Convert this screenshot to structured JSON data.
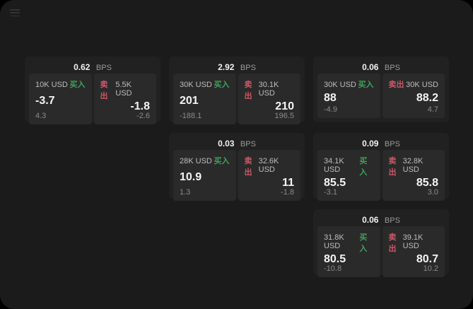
{
  "labels": {
    "bps_unit": "BPS",
    "buy": "买入",
    "sell": "卖出"
  },
  "colors": {
    "background": "#1b1b1b",
    "card": "#212121",
    "panel": "#2a2a2a",
    "buy_accent": "#3fa15c",
    "sell_accent": "#cf5668"
  },
  "cards": [
    {
      "bps": "0.62",
      "buy": {
        "amount": "10K USD",
        "price": "-3.7",
        "delta": "4.3"
      },
      "sell": {
        "amount": "5.5K USD",
        "price": "-1.8",
        "delta": "-2.6"
      }
    },
    {
      "bps": "2.92",
      "buy": {
        "amount": "30K USD",
        "price": "201",
        "delta": "-188.1"
      },
      "sell": {
        "amount": "30.1K USD",
        "price": "210",
        "delta": "196.5"
      }
    },
    {
      "bps": "0.06",
      "buy": {
        "amount": "30K USD",
        "price": "88",
        "delta": "-4.9"
      },
      "sell": {
        "amount": "30K USD",
        "price": "88.2",
        "delta": "4.7"
      }
    },
    {
      "bps": "0.03",
      "buy": {
        "amount": "28K USD",
        "price": "10.9",
        "delta": "1.3"
      },
      "sell": {
        "amount": "32.6K USD",
        "price": "11",
        "delta": "-1.8"
      }
    },
    {
      "bps": "0.09",
      "buy": {
        "amount": "34.1K USD",
        "price": "85.5",
        "delta": "-3.1"
      },
      "sell": {
        "amount": "32.8K USD",
        "price": "85.8",
        "delta": "3.0"
      }
    },
    {
      "bps": "0.06",
      "buy": {
        "amount": "31.8K USD",
        "price": "80.5",
        "delta": "-10.8"
      },
      "sell": {
        "amount": "39.1K USD",
        "price": "80.7",
        "delta": "10.2"
      }
    }
  ]
}
